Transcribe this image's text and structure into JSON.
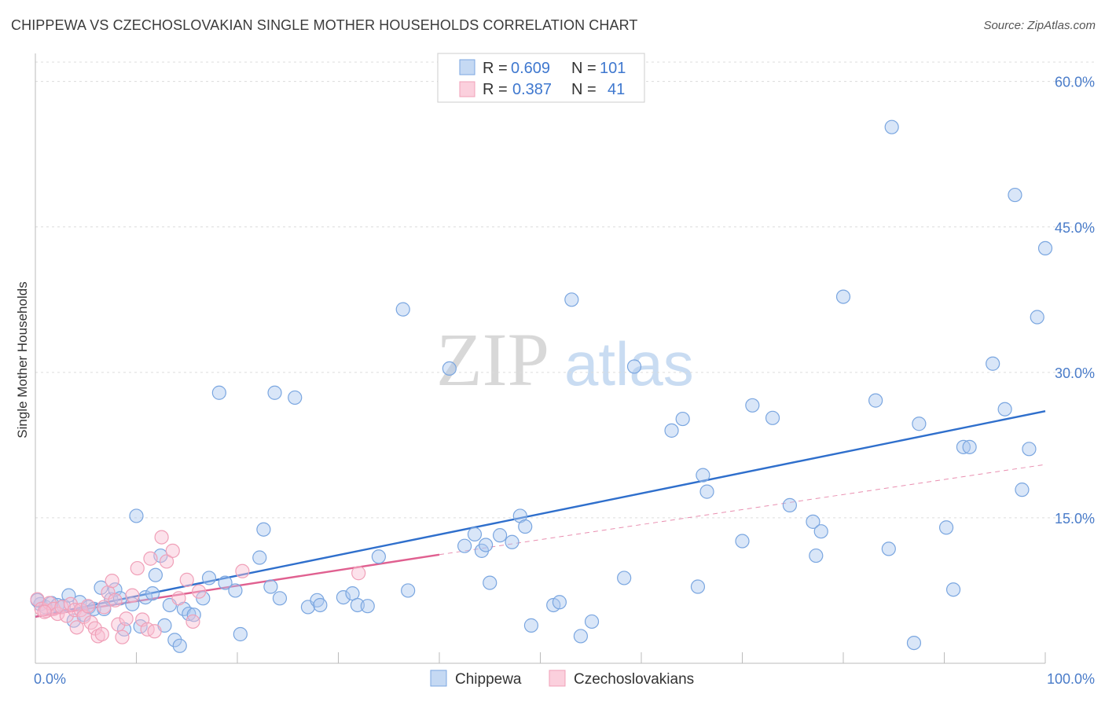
{
  "title": "CHIPPEWA VS CZECHOSLOVAKIAN SINGLE MOTHER HOUSEHOLDS CORRELATION CHART",
  "source": "Source: ZipAtlas.com",
  "watermark": {
    "zip": "ZIP",
    "atlas": "atlas"
  },
  "legend": {
    "rows": [
      {
        "r_label": "R =",
        "r_value": "0.609",
        "n_label": "N =",
        "n_value": "101",
        "color": "#7aa6e0"
      },
      {
        "r_label": "R =",
        "r_value": "0.387",
        "n_label": "N =",
        "n_value": "41",
        "color": "#f0a0b8"
      }
    ]
  },
  "bottom_legend": [
    "Chippewa",
    "Czechoslovakians"
  ],
  "chart_data": {
    "type": "scatter",
    "title": "CHIPPEWA VS CZECHOSLOVAKIAN SINGLE MOTHER HOUSEHOLDS CORRELATION CHART",
    "xlabel": "",
    "ylabel": "Single Mother Households",
    "xlim": [
      0,
      100
    ],
    "ylim": [
      0,
      62
    ],
    "x_tick_labels": [
      "0.0%",
      "100.0%"
    ],
    "y_ticks": [
      15,
      30,
      45,
      60
    ],
    "y_tick_labels": [
      "15.0%",
      "30.0%",
      "45.0%",
      "60.0%"
    ],
    "grid": true,
    "series": [
      {
        "name": "Chippewa",
        "color": "#7aa6e0",
        "trend": {
          "x": [
            0,
            100
          ],
          "y": [
            4.8,
            26.0
          ],
          "style": "solid",
          "color": "#2f6fcc"
        },
        "points": [
          [
            0.5,
            6.1
          ],
          [
            1.0,
            5.8
          ],
          [
            1.6,
            6.2
          ],
          [
            2.2,
            6.0
          ],
          [
            2.8,
            5.9
          ],
          [
            3.3,
            7.0
          ],
          [
            3.8,
            4.4
          ],
          [
            4.4,
            6.3
          ],
          [
            4.8,
            5.0
          ],
          [
            5.3,
            5.8
          ],
          [
            5.8,
            5.6
          ],
          [
            6.5,
            7.8
          ],
          [
            6.8,
            5.6
          ],
          [
            7.5,
            6.6
          ],
          [
            7.9,
            7.6
          ],
          [
            8.4,
            6.7
          ],
          [
            8.8,
            3.5
          ],
          [
            9.6,
            6.1
          ],
          [
            10.0,
            15.2
          ],
          [
            10.4,
            3.8
          ],
          [
            10.9,
            6.8
          ],
          [
            11.6,
            7.2
          ],
          [
            11.9,
            9.1
          ],
          [
            12.4,
            11.1
          ],
          [
            12.8,
            3.9
          ],
          [
            13.3,
            6.0
          ],
          [
            13.8,
            2.4
          ],
          [
            14.3,
            1.8
          ],
          [
            14.7,
            5.6
          ],
          [
            15.2,
            5.1
          ],
          [
            15.7,
            5.0
          ],
          [
            16.6,
            6.7
          ],
          [
            17.2,
            8.8
          ],
          [
            18.2,
            27.9
          ],
          [
            18.8,
            8.3
          ],
          [
            19.8,
            7.5
          ],
          [
            20.3,
            3.0
          ],
          [
            22.2,
            10.9
          ],
          [
            22.6,
            13.8
          ],
          [
            23.3,
            7.9
          ],
          [
            23.7,
            27.9
          ],
          [
            24.2,
            6.7
          ],
          [
            25.7,
            27.4
          ],
          [
            27.0,
            5.8
          ],
          [
            27.9,
            6.5
          ],
          [
            28.2,
            6.0
          ],
          [
            30.5,
            6.8
          ],
          [
            31.4,
            7.2
          ],
          [
            31.9,
            6.0
          ],
          [
            32.9,
            5.9
          ],
          [
            34.0,
            11.0
          ],
          [
            36.4,
            36.5
          ],
          [
            36.9,
            7.5
          ],
          [
            41.0,
            30.4
          ],
          [
            42.5,
            12.1
          ],
          [
            43.5,
            13.3
          ],
          [
            44.2,
            11.6
          ],
          [
            44.6,
            12.2
          ],
          [
            45.0,
            8.3
          ],
          [
            46.0,
            13.2
          ],
          [
            47.2,
            12.5
          ],
          [
            48.0,
            15.2
          ],
          [
            48.5,
            14.1
          ],
          [
            49.1,
            3.9
          ],
          [
            51.3,
            6.0
          ],
          [
            51.9,
            6.3
          ],
          [
            53.1,
            37.5
          ],
          [
            54.0,
            2.8
          ],
          [
            55.1,
            4.3
          ],
          [
            58.3,
            8.8
          ],
          [
            59.3,
            30.6
          ],
          [
            63.0,
            24.0
          ],
          [
            64.1,
            25.2
          ],
          [
            65.6,
            7.9
          ],
          [
            66.1,
            19.4
          ],
          [
            66.5,
            17.7
          ],
          [
            70.0,
            12.6
          ],
          [
            71.0,
            26.6
          ],
          [
            73.0,
            25.3
          ],
          [
            74.7,
            16.3
          ],
          [
            77.0,
            14.6
          ],
          [
            77.3,
            11.1
          ],
          [
            77.8,
            13.6
          ],
          [
            80.0,
            37.8
          ],
          [
            83.2,
            27.1
          ],
          [
            84.5,
            11.8
          ],
          [
            84.8,
            55.3
          ],
          [
            87.0,
            2.1
          ],
          [
            87.5,
            24.7
          ],
          [
            90.2,
            14.0
          ],
          [
            90.9,
            7.6
          ],
          [
            91.9,
            22.3
          ],
          [
            92.5,
            22.3
          ],
          [
            94.8,
            30.9
          ],
          [
            96.0,
            26.2
          ],
          [
            97.0,
            48.3
          ],
          [
            97.7,
            17.9
          ],
          [
            98.4,
            22.1
          ],
          [
            99.2,
            35.7
          ],
          [
            100.0,
            42.8
          ],
          [
            0.2,
            6.5
          ]
        ]
      },
      {
        "name": "Czechoslovakians",
        "color": "#f0a0b8",
        "trend": {
          "x": [
            0,
            40
          ],
          "y": [
            4.8,
            11.2
          ],
          "style": "solid",
          "color": "#e06090",
          "extension": {
            "x": [
              40,
              100
            ],
            "y": [
              11.2,
              20.5
            ],
            "style": "dashed"
          }
        },
        "points": [
          [
            0.2,
            6.6
          ],
          [
            0.6,
            5.6
          ],
          [
            1.1,
            5.4
          ],
          [
            1.4,
            6.2
          ],
          [
            1.8,
            5.6
          ],
          [
            2.2,
            5.1
          ],
          [
            2.6,
            5.8
          ],
          [
            3.1,
            4.9
          ],
          [
            3.5,
            6.1
          ],
          [
            3.9,
            5.5
          ],
          [
            4.1,
            3.7
          ],
          [
            4.5,
            5.5
          ],
          [
            4.8,
            4.8
          ],
          [
            5.2,
            5.9
          ],
          [
            5.5,
            4.2
          ],
          [
            5.9,
            3.6
          ],
          [
            6.2,
            2.8
          ],
          [
            6.6,
            3.0
          ],
          [
            6.8,
            5.8
          ],
          [
            7.2,
            7.3
          ],
          [
            7.6,
            8.5
          ],
          [
            7.9,
            6.5
          ],
          [
            8.2,
            4.0
          ],
          [
            8.6,
            2.7
          ],
          [
            9.0,
            4.6
          ],
          [
            9.6,
            7.0
          ],
          [
            10.1,
            9.8
          ],
          [
            10.6,
            4.5
          ],
          [
            11.1,
            3.5
          ],
          [
            11.4,
            10.8
          ],
          [
            11.8,
            3.3
          ],
          [
            12.5,
            13.0
          ],
          [
            13.0,
            10.5
          ],
          [
            13.6,
            11.6
          ],
          [
            14.2,
            6.7
          ],
          [
            15.0,
            8.6
          ],
          [
            15.6,
            4.3
          ],
          [
            16.2,
            7.4
          ],
          [
            20.5,
            9.5
          ],
          [
            32.0,
            9.3
          ],
          [
            0.9,
            5.3
          ]
        ]
      }
    ]
  }
}
